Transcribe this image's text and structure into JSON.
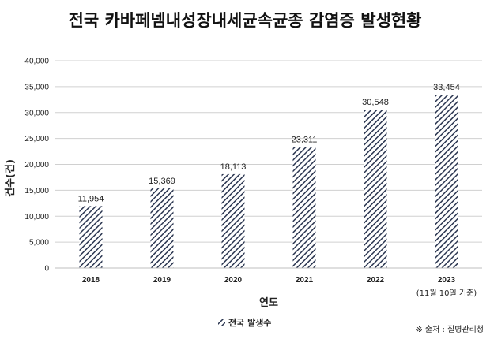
{
  "chart_data": {
    "type": "bar",
    "title": "전국 카바페넴내성장내세균속균종 감염증 발생현황",
    "xlabel": "연도",
    "ylabel": "건수(건)",
    "categories": [
      "2018",
      "2019",
      "2020",
      "2021",
      "2022",
      "2023"
    ],
    "category_notes": [
      "",
      "",
      "",
      "",
      "",
      "(11월 10일 기준)"
    ],
    "series": [
      {
        "name": "전국 발생수",
        "values": [
          11954,
          15369,
          18113,
          23311,
          30548,
          33454
        ]
      }
    ],
    "data_labels": [
      "11,954",
      "15,369",
      "18,113",
      "23,311",
      "30,548",
      "33,454"
    ],
    "ylim": [
      0,
      40000
    ],
    "yticks": [
      0,
      5000,
      10000,
      15000,
      20000,
      25000,
      30000,
      35000,
      40000
    ],
    "ytick_labels": [
      "0",
      "5,000",
      "10,000",
      "15,000",
      "20,000",
      "25,000",
      "30,000",
      "35,000",
      "40,000"
    ],
    "grid": true,
    "legend_position": "bottom",
    "bar_fill": "diagonal-hatch",
    "colors": {
      "bar": "#2a3550",
      "grid": "#d0d0d0"
    }
  },
  "source_note": "※ 출처 : 질병관리청"
}
